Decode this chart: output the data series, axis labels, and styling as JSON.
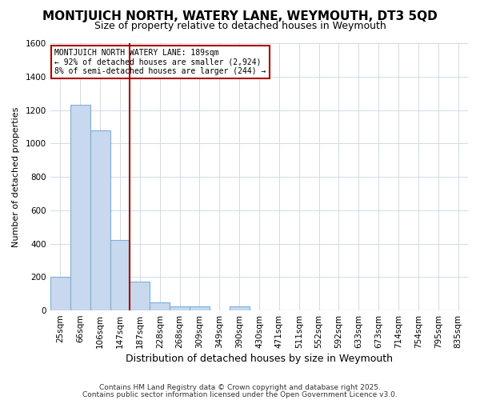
{
  "title1": "MONTJUICH NORTH, WATERY LANE, WEYMOUTH, DT3 5QD",
  "title2": "Size of property relative to detached houses in Weymouth",
  "xlabel": "Distribution of detached houses by size in Weymouth",
  "ylabel": "Number of detached properties",
  "categories": [
    "25sqm",
    "66sqm",
    "106sqm",
    "147sqm",
    "187sqm",
    "228sqm",
    "268sqm",
    "309sqm",
    "349sqm",
    "390sqm",
    "430sqm",
    "471sqm",
    "511sqm",
    "552sqm",
    "592sqm",
    "633sqm",
    "673sqm",
    "714sqm",
    "754sqm",
    "795sqm",
    "835sqm"
  ],
  "values": [
    200,
    1230,
    1080,
    420,
    175,
    50,
    25,
    25,
    0,
    25,
    0,
    0,
    0,
    0,
    0,
    0,
    0,
    0,
    0,
    0,
    0
  ],
  "bar_color": "#c8d8ee",
  "bar_edge_color": "#7ab0d8",
  "highlight_line_index": 4,
  "highlight_line_color": "#aa0000",
  "annotation_text": "MONTJUICH NORTH WATERY LANE: 189sqm\n← 92% of detached houses are smaller (2,924)\n8% of semi-detached houses are larger (244) →",
  "annotation_box_facecolor": "white",
  "annotation_box_edgecolor": "#aa0000",
  "ylim": [
    0,
    1600
  ],
  "yticks": [
    0,
    200,
    400,
    600,
    800,
    1000,
    1200,
    1400,
    1600
  ],
  "footer1": "Contains HM Land Registry data © Crown copyright and database right 2025.",
  "footer2": "Contains public sector information licensed under the Open Government Licence v3.0.",
  "plot_bg_color": "#ffffff",
  "fig_bg_color": "#ffffff",
  "grid_color": "#d0dce8",
  "title1_fontsize": 11,
  "title2_fontsize": 9,
  "xlabel_fontsize": 9,
  "ylabel_fontsize": 8,
  "tick_fontsize": 7.5,
  "footer_fontsize": 6.5
}
